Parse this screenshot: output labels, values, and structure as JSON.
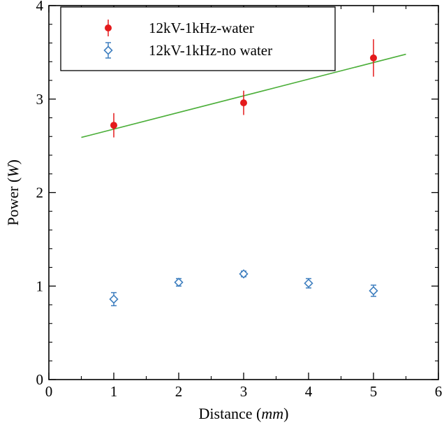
{
  "chart_data": {
    "type": "scatter",
    "xlabel": "Distance",
    "xlabel_unit": "mm",
    "ylabel": "Power",
    "ylabel_unit": "W",
    "xlim": [
      0,
      6
    ],
    "ylim": [
      0,
      4
    ],
    "x_ticks": [
      "0",
      "1",
      "2",
      "3",
      "4",
      "5",
      "6"
    ],
    "y_ticks": [
      "0",
      "1",
      "2",
      "3",
      "4"
    ],
    "grid": false,
    "legend_position": "top-left",
    "series": [
      {
        "name": "12kV-1kHz-water",
        "color": "#e41a1c",
        "marker": "filled-circle",
        "points": [
          {
            "x": 1,
            "y": 2.72,
            "err": 0.13
          },
          {
            "x": 3,
            "y": 2.96,
            "err": 0.13
          },
          {
            "x": 5,
            "y": 3.44,
            "err": 0.2
          }
        ]
      },
      {
        "name": "12kV-1kHz-no water",
        "color": "#3f7fbf",
        "marker": "open-diamond",
        "points": [
          {
            "x": 1,
            "y": 0.86,
            "err": 0.07
          },
          {
            "x": 2,
            "y": 1.04,
            "err": 0.04
          },
          {
            "x": 3,
            "y": 1.13,
            "err": 0.03
          },
          {
            "x": 4,
            "y": 1.03,
            "err": 0.05
          },
          {
            "x": 5,
            "y": 0.95,
            "err": 0.06
          }
        ]
      }
    ],
    "fit_line": {
      "color": "#4caf3a",
      "from": [
        0.5,
        2.59
      ],
      "to": [
        5.5,
        3.48
      ]
    }
  }
}
